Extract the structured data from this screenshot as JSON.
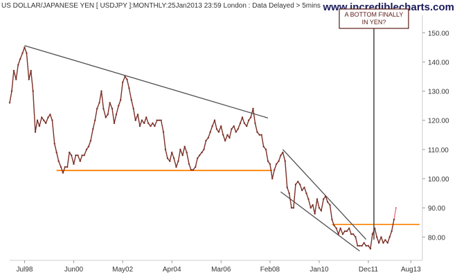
{
  "chart_data": {
    "type": "line",
    "title": "US DOLLAR/JAPANESE YEN [ USDJPY ]:MONTHLY:25Jan2013 23:59 London : Data Delayed > 5mins",
    "watermark": "www.incrediblecharts.com",
    "annotation": "A BOTTOM FINALLY IN YEN?",
    "x_tick_labels": [
      {
        "label": "Jul98",
        "x": 1998.5
      },
      {
        "label": "Jun00",
        "x": 2000.42
      },
      {
        "label": "May02",
        "x": 2002.33
      },
      {
        "label": "Apr04",
        "x": 2004.25
      },
      {
        "label": "Mar06",
        "x": 2006.17
      },
      {
        "label": "Feb08",
        "x": 2008.08
      },
      {
        "label": "Jan10",
        "x": 2010.0
      },
      {
        "label": "Dec11",
        "x": 2011.92
      },
      {
        "label": "Aug13",
        "x": 2013.58
      }
    ],
    "y_ticks": [
      80,
      90,
      100,
      110,
      120,
      130,
      140,
      150
    ],
    "y_tick_labels": [
      "80.00",
      "90.00",
      "100.00",
      "110.00",
      "120.00",
      "130.00",
      "140.00",
      "150.00"
    ],
    "ylim": [
      72.0,
      156.0
    ],
    "xlim": [
      1997.92,
      2013.92
    ],
    "series": [
      {
        "values": [
          [
            1997.92,
            126
          ],
          [
            1998.0,
            130
          ],
          [
            1998.08,
            137
          ],
          [
            1998.17,
            134
          ],
          [
            1998.25,
            139
          ],
          [
            1998.33,
            141
          ],
          [
            1998.42,
            143
          ],
          [
            1998.5,
            145
          ],
          [
            1998.58,
            143
          ],
          [
            1998.67,
            134
          ],
          [
            1998.75,
            137
          ],
          [
            1998.83,
            130
          ],
          [
            1998.92,
            116
          ],
          [
            1999.0,
            120
          ],
          [
            1999.08,
            118
          ],
          [
            1999.17,
            121
          ],
          [
            1999.25,
            120
          ],
          [
            1999.33,
            119
          ],
          [
            1999.42,
            121
          ],
          [
            1999.5,
            122
          ],
          [
            1999.58,
            120
          ],
          [
            1999.67,
            112
          ],
          [
            1999.75,
            109
          ],
          [
            1999.83,
            106
          ],
          [
            1999.92,
            104
          ],
          [
            2000.0,
            102
          ],
          [
            2000.08,
            104
          ],
          [
            2000.17,
            104
          ],
          [
            2000.25,
            109
          ],
          [
            2000.33,
            108
          ],
          [
            2000.42,
            105
          ],
          [
            2000.5,
            108
          ],
          [
            2000.58,
            108
          ],
          [
            2000.67,
            106
          ],
          [
            2000.75,
            108
          ],
          [
            2000.83,
            108
          ],
          [
            2000.92,
            110
          ],
          [
            2001.0,
            111
          ],
          [
            2001.08,
            113
          ],
          [
            2001.17,
            117
          ],
          [
            2001.25,
            120
          ],
          [
            2001.33,
            124
          ],
          [
            2001.42,
            126
          ],
          [
            2001.5,
            130
          ],
          [
            2001.58,
            124
          ],
          [
            2001.67,
            121
          ],
          [
            2001.75,
            122
          ],
          [
            2001.83,
            126
          ],
          [
            2001.92,
            124
          ],
          [
            2002.0,
            119
          ],
          [
            2002.08,
            122
          ],
          [
            2002.17,
            125
          ],
          [
            2002.25,
            127
          ],
          [
            2002.33,
            133
          ],
          [
            2002.42,
            135
          ],
          [
            2002.5,
            134
          ],
          [
            2002.58,
            131
          ],
          [
            2002.67,
            127
          ],
          [
            2002.75,
            124
          ],
          [
            2002.83,
            120
          ],
          [
            2002.92,
            122
          ],
          [
            2003.0,
            118
          ],
          [
            2003.08,
            120
          ],
          [
            2003.17,
            119
          ],
          [
            2003.25,
            121
          ],
          [
            2003.33,
            119
          ],
          [
            2003.42,
            118
          ],
          [
            2003.5,
            119
          ],
          [
            2003.58,
            118
          ],
          [
            2003.67,
            120
          ],
          [
            2003.75,
            120
          ],
          [
            2003.83,
            120
          ],
          [
            2003.92,
            116
          ],
          [
            2004.0,
            110
          ],
          [
            2004.08,
            107
          ],
          [
            2004.17,
            106
          ],
          [
            2004.25,
            109
          ],
          [
            2004.33,
            107
          ],
          [
            2004.42,
            104
          ],
          [
            2004.5,
            106
          ],
          [
            2004.58,
            110
          ],
          [
            2004.67,
            108
          ],
          [
            2004.75,
            111
          ],
          [
            2004.83,
            109
          ],
          [
            2004.92,
            105
          ],
          [
            2005.0,
            103
          ],
          [
            2005.08,
            103
          ],
          [
            2005.17,
            104
          ],
          [
            2005.25,
            107
          ],
          [
            2005.33,
            108
          ],
          [
            2005.42,
            109
          ],
          [
            2005.5,
            110
          ],
          [
            2005.58,
            113
          ],
          [
            2005.67,
            114
          ],
          [
            2005.75,
            116
          ],
          [
            2005.83,
            118
          ],
          [
            2005.92,
            120
          ],
          [
            2006.0,
            117
          ],
          [
            2006.08,
            116
          ],
          [
            2006.17,
            118
          ],
          [
            2006.25,
            115
          ],
          [
            2006.33,
            113
          ],
          [
            2006.42,
            115
          ],
          [
            2006.5,
            114
          ],
          [
            2006.58,
            117
          ],
          [
            2006.67,
            118
          ],
          [
            2006.75,
            116
          ],
          [
            2006.83,
            117
          ],
          [
            2006.92,
            119
          ],
          [
            2007.0,
            121
          ],
          [
            2007.08,
            119
          ],
          [
            2007.17,
            118
          ],
          [
            2007.25,
            120
          ],
          [
            2007.33,
            121
          ],
          [
            2007.42,
            124
          ],
          [
            2007.5,
            119
          ],
          [
            2007.58,
            116
          ],
          [
            2007.67,
            115
          ],
          [
            2007.75,
            115
          ],
          [
            2007.83,
            111
          ],
          [
            2007.92,
            110
          ],
          [
            2008.0,
            106
          ],
          [
            2008.08,
            105
          ],
          [
            2008.17,
            100
          ],
          [
            2008.25,
            103
          ],
          [
            2008.33,
            105
          ],
          [
            2008.42,
            106
          ],
          [
            2008.5,
            108
          ],
          [
            2008.58,
            109
          ],
          [
            2008.67,
            106
          ],
          [
            2008.75,
            97
          ],
          [
            2008.83,
            95
          ],
          [
            2008.92,
            90
          ],
          [
            2009.0,
            90
          ],
          [
            2009.08,
            98
          ],
          [
            2009.17,
            99
          ],
          [
            2009.25,
            98
          ],
          [
            2009.33,
            96
          ],
          [
            2009.42,
            97
          ],
          [
            2009.5,
            95
          ],
          [
            2009.58,
            93
          ],
          [
            2009.67,
            90
          ],
          [
            2009.75,
            91
          ],
          [
            2009.83,
            88
          ],
          [
            2009.92,
            93
          ],
          [
            2010.0,
            90
          ],
          [
            2010.08,
            89
          ],
          [
            2010.17,
            93
          ],
          [
            2010.25,
            94
          ],
          [
            2010.33,
            92
          ],
          [
            2010.42,
            91
          ],
          [
            2010.5,
            86
          ],
          [
            2010.58,
            84
          ],
          [
            2010.67,
            83
          ],
          [
            2010.75,
            81
          ],
          [
            2010.83,
            83
          ],
          [
            2010.92,
            81
          ],
          [
            2011.0,
            82
          ],
          [
            2011.08,
            82
          ],
          [
            2011.17,
            83
          ],
          [
            2011.25,
            81
          ],
          [
            2011.33,
            81
          ],
          [
            2011.42,
            80
          ],
          [
            2011.5,
            77
          ],
          [
            2011.58,
            77
          ],
          [
            2011.67,
            77
          ],
          [
            2011.75,
            78
          ],
          [
            2011.83,
            77
          ],
          [
            2011.92,
            77
          ],
          [
            2012.0,
            76
          ],
          [
            2012.08,
            81
          ],
          [
            2012.17,
            83
          ],
          [
            2012.25,
            80
          ],
          [
            2012.33,
            78
          ],
          [
            2012.42,
            80
          ],
          [
            2012.5,
            78
          ],
          [
            2012.58,
            79
          ],
          [
            2012.67,
            78
          ],
          [
            2012.75,
            80
          ],
          [
            2012.83,
            82
          ],
          [
            2012.92,
            86
          ],
          [
            2013.0,
            90
          ]
        ]
      }
    ],
    "colors": {
      "price": "#7a2e26",
      "price_last": "#e07a80",
      "trendline": "#4d4d4d",
      "support": "#ff8000",
      "annotation_border": "#5a1a14",
      "annotation_line": "#4d4d4d",
      "axis_text": "#333333",
      "watermark": "#1a1a5a"
    }
  }
}
